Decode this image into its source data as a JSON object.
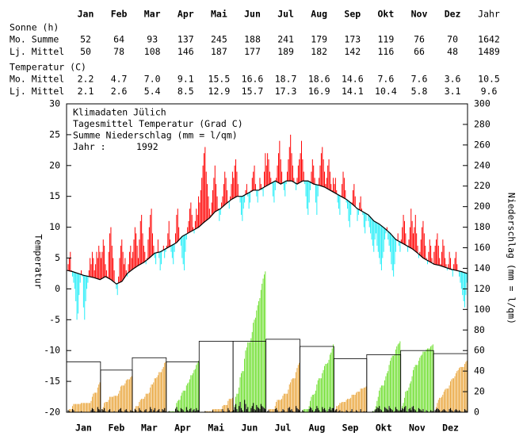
{
  "table": {
    "columns": [
      "Jan",
      "Feb",
      "Mar",
      "Apr",
      "Mai",
      "Jun",
      "Jul",
      "Aug",
      "Sep",
      "Okt",
      "Nov",
      "Dez",
      "Jahr"
    ],
    "above_color": "#ff2020",
    "below_color": "#22e0f0",
    "sections": [
      {
        "title": "Sonne (h)",
        "rows": [
          {
            "label": "Mo. Summe",
            "cells": [
              "52",
              "64",
              "93",
              "137",
              "245",
              "188",
              "241",
              "179",
              "173",
              "119",
              "76",
              "70",
              "1642"
            ]
          },
          {
            "label": "Lj. Mittel",
            "cells": [
              "50",
              "78",
              "108",
              "146",
              "187",
              "177",
              "189",
              "182",
              "142",
              "116",
              "66",
              "48",
              "1489"
            ]
          }
        ]
      },
      {
        "title": "Temperatur (C)",
        "rows": [
          {
            "label": "Mo. Mittel",
            "cells": [
              "2.2",
              "4.7",
              "7.0",
              "9.1",
              "15.5",
              "16.6",
              "18.7",
              "18.6",
              "14.6",
              "7.6",
              "7.6",
              "3.6",
              "10.5"
            ]
          },
          {
            "label": "Lj. Mittel",
            "cells": [
              "2.1",
              "2.6",
              "5.4",
              "8.5",
              "12.9",
              "15.7",
              "17.3",
              "16.9",
              "14.1",
              "10.4",
              "5.8",
              "3.1",
              "9.6"
            ]
          }
        ]
      }
    ]
  },
  "chart_data": {
    "type": "climate",
    "annotations": [
      "Klimadaten Jülich",
      "Tagesmittel Temperatur (Grad C)",
      "Summe Niederschlag (mm = l/qm)"
    ],
    "year_label": "Jahr :",
    "year": 1992,
    "year_color": "#ee22ee",
    "ylabel": "Temperatur",
    "y2label": "Niederschlag (mm = l/qm)",
    "categories": [
      "Jan",
      "Feb",
      "Mar",
      "Apr",
      "Mai",
      "Jun",
      "Jul",
      "Aug",
      "Sep",
      "Okt",
      "Nov",
      "Dez"
    ],
    "xlim": [
      0,
      366
    ],
    "ylim": [
      -20,
      30
    ],
    "yticks": [
      -20,
      -15,
      -10,
      -5,
      0,
      5,
      10,
      15,
      20,
      25,
      30
    ],
    "y2lim": [
      0,
      300
    ],
    "y2ticks": [
      0,
      20,
      40,
      60,
      80,
      100,
      120,
      140,
      160,
      180,
      200,
      220,
      240,
      260,
      280,
      300
    ],
    "temperature": {
      "above_color": "#ff0000",
      "below_color": "#22eef8",
      "values": [
        3,
        4,
        5,
        6,
        3,
        2,
        1,
        0,
        -2,
        -5,
        -4,
        -1,
        1,
        3,
        2,
        -3,
        -5,
        -2,
        0,
        1,
        3,
        5,
        4,
        6,
        5,
        3,
        4,
        6,
        5,
        7,
        6,
        5,
        6,
        8,
        7,
        4,
        3,
        2,
        6,
        9,
        10,
        7,
        5,
        3,
        1,
        0,
        -1,
        2,
        5,
        7,
        8,
        6,
        4,
        5,
        3,
        2,
        4,
        6,
        7,
        5,
        6,
        8,
        10,
        9,
        7,
        5,
        8,
        11,
        12,
        9,
        7,
        6,
        4,
        5,
        8,
        10,
        12,
        13,
        9,
        7,
        5,
        4,
        6,
        8,
        5,
        3,
        4,
        6,
        7,
        5,
        6,
        7,
        9,
        11,
        8,
        6,
        5,
        4,
        6,
        9,
        12,
        13,
        10,
        8,
        7,
        5,
        4,
        3,
        6,
        8,
        10,
        11,
        13,
        14,
        12,
        10,
        9,
        11,
        13,
        12,
        15,
        14,
        16,
        18,
        20,
        22,
        23,
        19,
        17,
        15,
        13,
        12,
        14,
        16,
        18,
        20,
        17,
        15,
        13,
        11,
        12,
        14,
        15,
        17,
        19,
        18,
        16,
        14,
        13,
        15,
        17,
        19,
        18,
        20,
        21,
        19,
        17,
        15,
        14,
        12,
        11,
        13,
        14,
        16,
        17,
        15,
        13,
        14,
        16,
        18,
        19,
        20,
        17,
        15,
        14,
        16,
        18,
        17,
        16,
        15,
        19,
        22,
        20,
        22,
        21,
        19,
        18,
        17,
        15,
        14,
        16,
        18,
        20,
        22,
        24,
        21,
        19,
        17,
        16,
        15,
        17,
        19,
        21,
        23,
        25,
        22,
        20,
        18,
        17,
        16,
        18,
        20,
        21,
        22,
        24,
        21,
        19,
        17,
        15,
        13,
        12,
        14,
        16,
        19,
        21,
        20,
        18,
        14,
        12,
        15,
        18,
        20,
        22,
        23,
        21,
        19,
        17,
        18,
        20,
        21,
        19,
        17,
        16,
        18,
        17,
        18,
        16,
        14,
        13,
        12,
        15,
        17,
        19,
        18,
        16,
        14,
        13,
        11,
        10,
        12,
        14,
        16,
        17,
        15,
        13,
        11,
        12,
        14,
        15,
        13,
        12,
        10,
        9,
        11,
        12,
        11,
        10,
        9,
        8,
        7,
        6,
        8,
        9,
        7,
        6,
        5,
        4,
        3,
        5,
        6,
        8,
        9,
        10,
        8,
        7,
        6,
        4,
        3,
        2,
        4,
        6,
        8,
        9,
        7,
        6,
        8,
        10,
        12,
        11,
        9,
        7,
        6,
        8,
        10,
        13,
        11,
        9,
        10,
        12,
        9,
        7,
        5,
        6,
        8,
        10,
        11,
        9,
        7,
        5,
        4,
        6,
        8,
        7,
        5,
        4,
        6,
        7,
        8,
        9,
        7,
        5,
        4,
        6,
        8,
        7,
        5,
        4,
        3,
        4,
        6,
        5,
        3,
        2,
        4,
        5,
        6,
        4,
        3,
        2,
        1,
        0,
        -1,
        -2,
        -3,
        -1,
        1
      ]
    },
    "temperature_normal": {
      "color": "#000000",
      "x": [
        1,
        6,
        11,
        16,
        21,
        26,
        31,
        36,
        41,
        46,
        51,
        56,
        61,
        66,
        71,
        76,
        81,
        86,
        91,
        96,
        101,
        106,
        111,
        116,
        121,
        126,
        131,
        136,
        141,
        146,
        151,
        156,
        161,
        166,
        171,
        176,
        181,
        186,
        191,
        196,
        201,
        206,
        211,
        216,
        221,
        226,
        231,
        236,
        241,
        246,
        251,
        256,
        261,
        266,
        271,
        276,
        281,
        286,
        291,
        296,
        301,
        306,
        311,
        316,
        321,
        326,
        331,
        336,
        341,
        346,
        351,
        356,
        361,
        366
      ],
      "values": [
        3.0,
        2.8,
        2.5,
        2.2,
        2.0,
        1.8,
        1.5,
        2.0,
        1.5,
        0.8,
        1.2,
        2.5,
        3.2,
        3.8,
        4.3,
        5.0,
        5.8,
        6.0,
        6.5,
        7.0,
        7.5,
        8.5,
        9.0,
        9.5,
        10.0,
        10.8,
        11.5,
        12.5,
        13.0,
        13.8,
        14.5,
        15.0,
        15.0,
        15.5,
        16.0,
        16.0,
        16.5,
        17.0,
        17.5,
        17.0,
        17.5,
        17.5,
        17.0,
        17.5,
        17.5,
        17.0,
        16.8,
        16.5,
        16.0,
        15.5,
        15.0,
        14.5,
        13.8,
        13.0,
        12.5,
        12.0,
        11.0,
        10.5,
        9.8,
        9.0,
        8.0,
        7.5,
        7.0,
        6.5,
        5.8,
        5.0,
        4.5,
        4.0,
        3.8,
        3.5,
        3.2,
        3.0,
        2.8,
        2.5
      ]
    },
    "precipitation": {
      "color": "#000000",
      "above_color": "#66dd22",
      "below_color": "#e8a030",
      "values": [
        0,
        2,
        1,
        0,
        0,
        3,
        2,
        0,
        0,
        0,
        0,
        0,
        0,
        1,
        0,
        0,
        0,
        0,
        0,
        0,
        0,
        0,
        2,
        4,
        3,
        1,
        0,
        0,
        5,
        3,
        2,
        0,
        3,
        2,
        4,
        1,
        0,
        0,
        2,
        3,
        0,
        0,
        0,
        1,
        0,
        0,
        0,
        2,
        3,
        4,
        1,
        0,
        0,
        2,
        3,
        1,
        0,
        0,
        2,
        1,
        1,
        0,
        3,
        2,
        0,
        0,
        4,
        2,
        1,
        0,
        0,
        2,
        3,
        0,
        0,
        1,
        5,
        3,
        0,
        2,
        4,
        0,
        1,
        2,
        3,
        0,
        0,
        3,
        2,
        4,
        1,
        0,
        0,
        1,
        0,
        0,
        0,
        0,
        0,
        3,
        5,
        2,
        1,
        0,
        4,
        3,
        2,
        0,
        0,
        5,
        2,
        1,
        3,
        4,
        0,
        2,
        3,
        1,
        4,
        2,
        2,
        0,
        0,
        0,
        0,
        0,
        1,
        0,
        0,
        0,
        0,
        0,
        0,
        2,
        0,
        0,
        0,
        0,
        0,
        0,
        0,
        0,
        3,
        1,
        0,
        0,
        0,
        4,
        2,
        0,
        0,
        1,
        2,
        5,
        8,
        3,
        0,
        6,
        10,
        4,
        2,
        0,
        12,
        8,
        3,
        5,
        0,
        0,
        4,
        6,
        9,
        3,
        2,
        7,
        5,
        4,
        3,
        8,
        6,
        5,
        4,
        3,
        0,
        1,
        2,
        0,
        0,
        0,
        0,
        0,
        3,
        4,
        2,
        0,
        0,
        0,
        1,
        3,
        2,
        0,
        0,
        0,
        4,
        5,
        2,
        3,
        1,
        0,
        0,
        6,
        4,
        3,
        2,
        0,
        0,
        2,
        1,
        0,
        0,
        0,
        0,
        3,
        5,
        4,
        2,
        0,
        1,
        3,
        6,
        4,
        2,
        0,
        0,
        5,
        3,
        4,
        2,
        0,
        1,
        3,
        5,
        2,
        4,
        4,
        1,
        2,
        3,
        0,
        1,
        2,
        0,
        1,
        0,
        0,
        0,
        2,
        1,
        0,
        0,
        1,
        3,
        0,
        0,
        0,
        2,
        1,
        0,
        0,
        3,
        0,
        0,
        1,
        0,
        1,
        0,
        0,
        0,
        0,
        0,
        1,
        0,
        2,
        3,
        5,
        4,
        6,
        3,
        2,
        0,
        0,
        5,
        4,
        3,
        2,
        6,
        4,
        3,
        2,
        0,
        1,
        5,
        3,
        2,
        1,
        2,
        2,
        4,
        3,
        5,
        6,
        1,
        0,
        3,
        4,
        2,
        5,
        6,
        3,
        2,
        0,
        0,
        4,
        3,
        2,
        1,
        3,
        0,
        0,
        2,
        1,
        0,
        0,
        2,
        1,
        1,
        0,
        2,
        3,
        4,
        3,
        2,
        0,
        1,
        2,
        3,
        2,
        1,
        0,
        0,
        3,
        4,
        2,
        1,
        0,
        2,
        3,
        2,
        1,
        2,
        1,
        0,
        0,
        0,
        3,
        2,
        1
      ]
    },
    "precipitation_normal": {
      "color": "#000000",
      "values": [
        49,
        41,
        53,
        49,
        69,
        69,
        71,
        64,
        52,
        56,
        60,
        57
      ]
    }
  }
}
